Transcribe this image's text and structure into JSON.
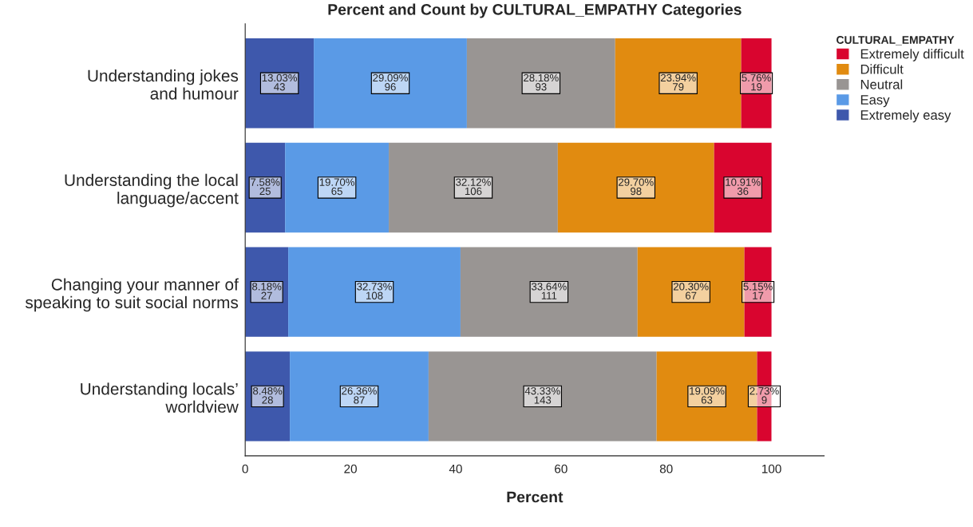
{
  "chart_data": {
    "type": "bar",
    "orientation": "horizontal",
    "stacked": true,
    "title": "Percent and Count by CULTURAL_EMPATHY Categories",
    "xlabel": "Percent",
    "legend_title": "CULTURAL_EMPATHY",
    "legend": "top right",
    "categories": [
      "Understanding jokes\nand humour",
      "Understanding the local\nlanguage/accent",
      "Changing your manner of\nspeaking to suit social norms",
      "Understanding locals’\nworldview"
    ],
    "xlim": [
      0,
      110
    ],
    "xticks": [
      0,
      20,
      40,
      60,
      80,
      100
    ],
    "grid": false,
    "series": [
      {
        "name": "Extremely easy",
        "color": "#3e58ac",
        "values": [
          13.03,
          7.58,
          8.18,
          8.48
        ],
        "value_labels": [
          "13.03%\n43",
          "7.58%\n25",
          "8.18%\n27",
          "8.48%\n28"
        ]
      },
      {
        "name": "Easy",
        "color": "#5a9ae6",
        "values": [
          29.09,
          19.7,
          32.73,
          26.36
        ],
        "value_labels": [
          "29.09%\n96",
          "19.70%\n65",
          "32.73%\n108",
          "26.36%\n87"
        ]
      },
      {
        "name": "Neutral",
        "color": "#999593",
        "values": [
          28.18,
          32.12,
          33.64,
          43.33
        ],
        "value_labels": [
          "28.18%\n93",
          "32.12%\n106",
          "33.64%\n111",
          "43.33%\n143"
        ]
      },
      {
        "name": "Difficult",
        "color": "#e18b10",
        "values": [
          23.94,
          29.7,
          20.3,
          19.09
        ],
        "value_labels": [
          "23.94%\n79",
          "29.70%\n98",
          "20.30%\n67",
          "19.09%\n63"
        ]
      },
      {
        "name": "Extremely difficult",
        "color": "#d9052f",
        "values": [
          5.76,
          10.91,
          5.15,
          2.73
        ],
        "value_labels": [
          "5.76%\n19",
          "10.91%\n36",
          "5.15%\n17",
          "2.73%\n9"
        ]
      }
    ]
  }
}
